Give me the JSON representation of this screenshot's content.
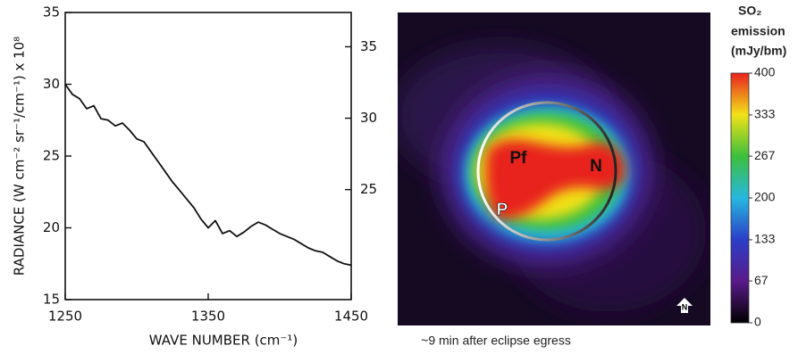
{
  "chart_data": [
    {
      "type": "line",
      "x_label": "WAVE NUMBER (cm⁻¹)",
      "y_label": "RADIANCE (W cm⁻² sr⁻¹/cm⁻¹) x 10⁸",
      "x": [
        1250,
        1255,
        1260,
        1265,
        1270,
        1275,
        1280,
        1285,
        1290,
        1295,
        1300,
        1305,
        1310,
        1315,
        1320,
        1325,
        1330,
        1335,
        1340,
        1345,
        1350,
        1355,
        1360,
        1365,
        1370,
        1375,
        1380,
        1385,
        1390,
        1395,
        1400,
        1405,
        1410,
        1415,
        1420,
        1425,
        1430,
        1435,
        1440,
        1445,
        1450
      ],
      "values": [
        30.0,
        29.3,
        29.0,
        28.3,
        28.5,
        27.6,
        27.5,
        27.1,
        27.3,
        26.8,
        26.2,
        26.0,
        25.3,
        24.6,
        23.9,
        23.2,
        22.6,
        22.0,
        21.4,
        20.6,
        20.0,
        20.5,
        19.6,
        19.8,
        19.4,
        19.7,
        20.1,
        20.4,
        20.2,
        19.9,
        19.6,
        19.4,
        19.2,
        18.9,
        18.6,
        18.4,
        18.3,
        18.0,
        17.7,
        17.5,
        17.4
      ],
      "color": "#111111",
      "xlim": [
        1250,
        1450
      ],
      "xticks": [
        1250,
        1350,
        1450
      ],
      "ylim": [
        15,
        35
      ],
      "yticks": [
        15,
        20,
        25,
        30,
        35
      ],
      "y2lim": [
        17.3,
        37.4
      ],
      "y2ticks": [
        25,
        30,
        35
      ]
    },
    {
      "type": "heatmap-image",
      "caption": "~9 min after eclipse egress",
      "colorbar_label": [
        "SO₂",
        "emission",
        "(mJy/bm)"
      ],
      "annotations": [
        "Pf",
        "P",
        "N"
      ],
      "compass": "N",
      "clim": [
        0,
        400
      ],
      "cticks": [
        0,
        67,
        133,
        200,
        267,
        333,
        400
      ],
      "colorscale": [
        "#000000",
        "#5a1a8a",
        "#2b3ec8",
        "#27b8e0",
        "#3cbf3c",
        "#f2e218",
        "#e8211e"
      ]
    }
  ]
}
